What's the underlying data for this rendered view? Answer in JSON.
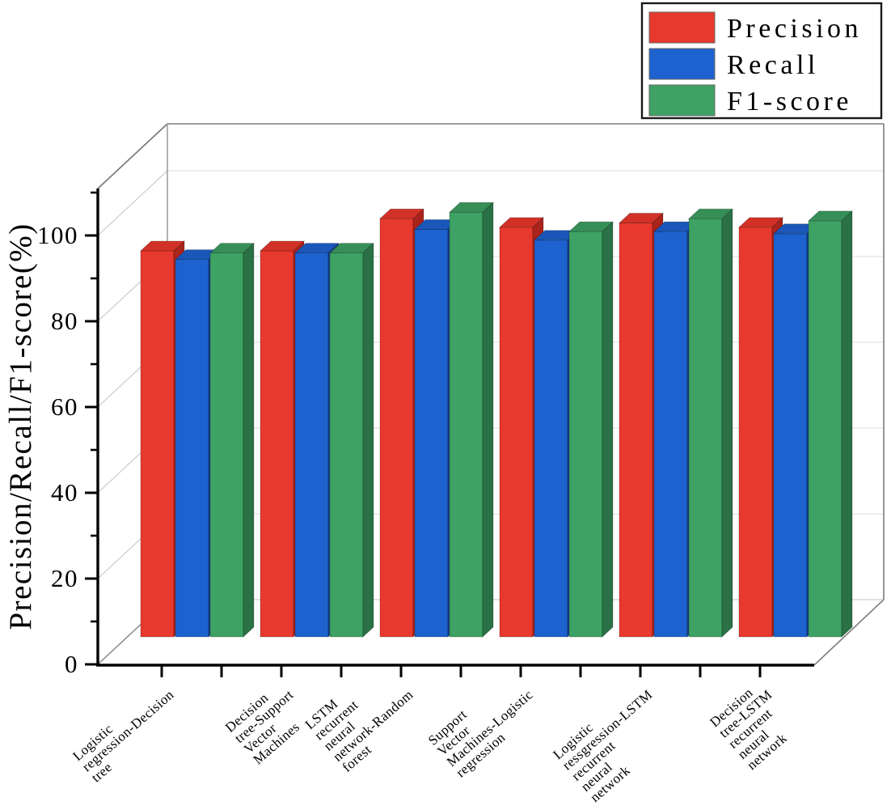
{
  "figure": {
    "kind": "grouped-3d-bar-chart",
    "background": "#ffffff"
  },
  "legend": {
    "position": "top-right",
    "items": [
      {
        "label": "Precision",
        "color": "#e8392e"
      },
      {
        "label": "Recall",
        "color": "#1d62cf"
      },
      {
        "label": "F1-score",
        "color": "#3da263"
      }
    ]
  },
  "chart_data": {
    "type": "bar",
    "projection": "3d-oblique",
    "title": "",
    "xlabel": "",
    "ylabel": "Precision/Recall/F1-score(%)",
    "ylim": [
      0,
      113
    ],
    "yticks": [
      0,
      20,
      40,
      60,
      80,
      100
    ],
    "y_minor_step": 10,
    "grid": true,
    "legend_position": "top-right",
    "categories": [
      "Logistic regression-Decision tree",
      "Decision tree-Support Vector Machines",
      "LSTM recurrent neural network-Random forest",
      "Support Vector Machines-Logistic regression",
      "Logistic ressgression-LSTM recurrent neural network",
      "Decision tree-LSTM recurrent neural network"
    ],
    "category_lines": [
      [
        "Logistic",
        "regression-Decision",
        "tree"
      ],
      [
        "Decision",
        "tree-Support",
        "Vector",
        "Machines"
      ],
      [
        "LSTM",
        "recurrent",
        "neural",
        "network-Random",
        "forest"
      ],
      [
        "Support",
        "Vector",
        "Machines-Logistic",
        "regression"
      ],
      [
        "Logistic",
        "ressgression-LSTM",
        "recurrent",
        "neural",
        "network"
      ],
      [
        "Decision",
        "tree-LSTM",
        "recurrent",
        "neural",
        "network"
      ]
    ],
    "series": [
      {
        "name": "Precision",
        "color": "#e8392e",
        "color_top": "#d23127",
        "color_side": "#aa241c",
        "values": [
          90,
          90,
          97.5,
          95.5,
          96.5,
          95.5
        ]
      },
      {
        "name": "Recall",
        "color": "#1d62cf",
        "color_top": "#1a57b9",
        "color_side": "#143f8c",
        "values": [
          88,
          89.5,
          95,
          92.5,
          94.5,
          94
        ]
      },
      {
        "name": "F1-score",
        "color": "#3da263",
        "color_top": "#368f57",
        "color_side": "#2a7145",
        "values": [
          89.5,
          89.5,
          99,
          94.5,
          97.5,
          97
        ]
      }
    ]
  }
}
